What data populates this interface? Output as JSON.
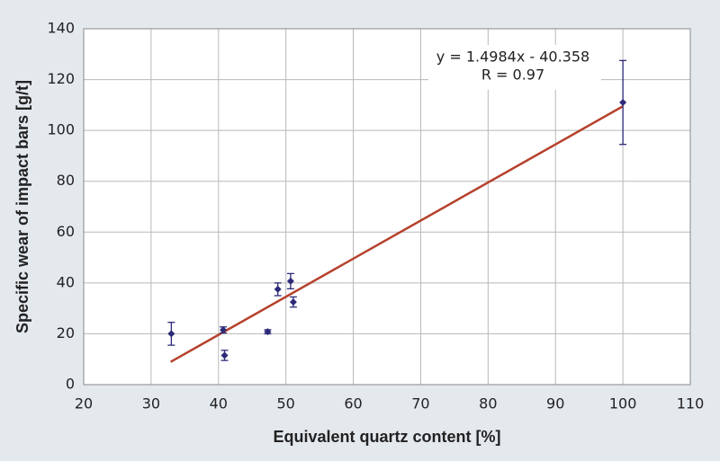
{
  "chart_data": {
    "type": "scatter",
    "x_label": "Equivalent quartz content [%]",
    "y_label": "Specific wear of impact bars [g/t]",
    "annotation": [
      "y = 1.4984x - 40.358",
      "R = 0.97"
    ],
    "x": [
      33,
      40.7,
      40.9,
      47.3,
      48.8,
      50.7,
      51.1,
      100
    ],
    "values": [
      20,
      21.5,
      11.5,
      20.8,
      37.5,
      40.7,
      32.5,
      111
    ],
    "errors": [
      4.5,
      1.2,
      2,
      0.8,
      2.5,
      3,
      2,
      16.5
    ],
    "color": "#2d2a78",
    "trendline": {
      "x": [
        32.9,
        100
      ],
      "y": [
        8.94,
        109.5
      ],
      "color": "#b5402c"
    },
    "xlim": [
      20,
      110
    ],
    "xticks": [
      20,
      30,
      40,
      50,
      60,
      70,
      80,
      90,
      100,
      110
    ],
    "ylim": [
      0,
      140
    ],
    "yticks": [
      0,
      20,
      40,
      60,
      80,
      100,
      120,
      140
    ],
    "grid": true
  }
}
